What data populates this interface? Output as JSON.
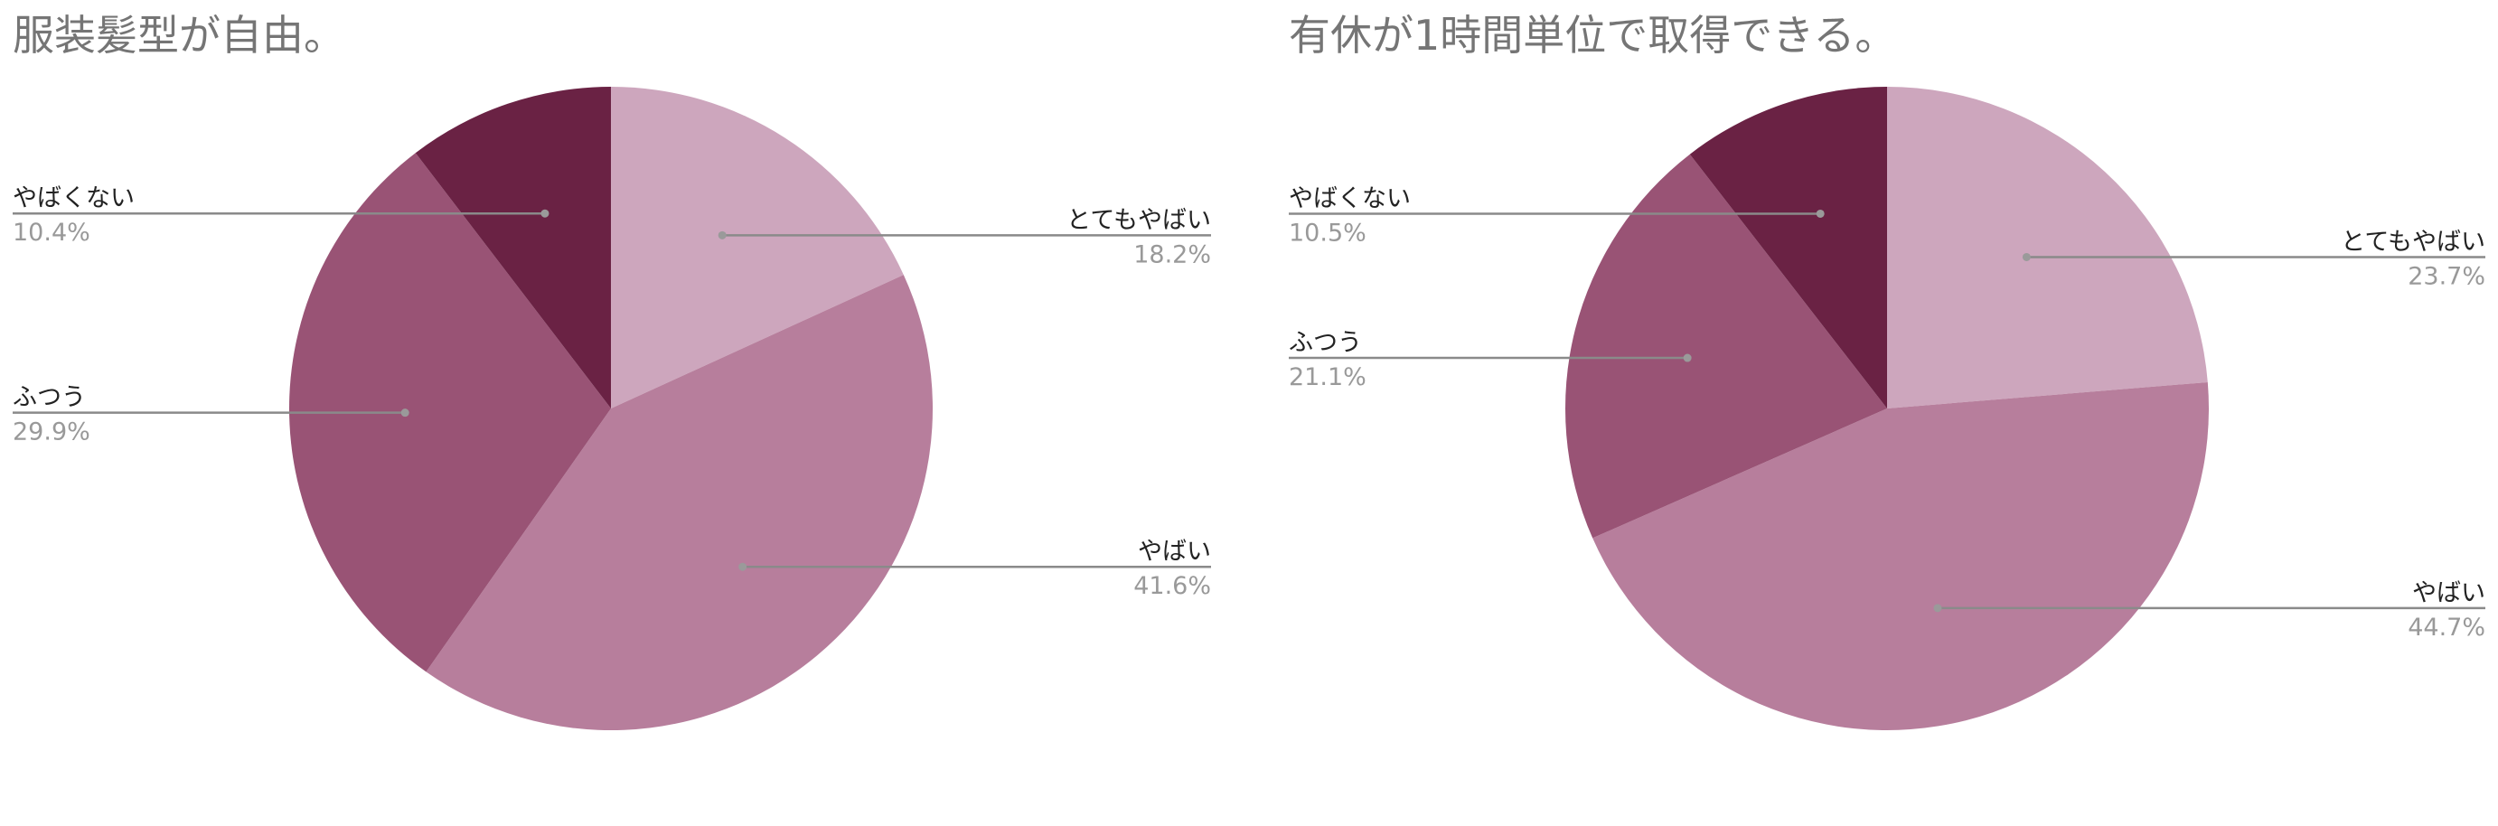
{
  "chart_data": [
    {
      "type": "pie",
      "title": "服装髪型が自由。",
      "start_angle_deg": 0,
      "direction": "clockwise",
      "slices": [
        {
          "label": "とてもやばい",
          "value": 18.2,
          "display": "18.2%",
          "color": "#cda6bd"
        },
        {
          "label": "やばい",
          "value": 41.6,
          "display": "41.6%",
          "color": "#b77e9c"
        },
        {
          "label": "ふつう",
          "value": 29.9,
          "display": "29.9%",
          "color": "#995375"
        },
        {
          "label": "やばくない",
          "value": 10.4,
          "display": "10.4%",
          "color": "#6a2244"
        }
      ]
    },
    {
      "type": "pie",
      "title": "有休が1時間単位で取得できる。",
      "start_angle_deg": 0,
      "direction": "clockwise",
      "slices": [
        {
          "label": "とてもやばい",
          "value": 23.7,
          "display": "23.7%",
          "color": "#cda6bd"
        },
        {
          "label": "やばい",
          "value": 44.7,
          "display": "44.7%",
          "color": "#b77e9c"
        },
        {
          "label": "ふつう",
          "value": 21.1,
          "display": "21.1%",
          "color": "#995375"
        },
        {
          "label": "やばくない",
          "value": 10.5,
          "display": "10.5%",
          "color": "#6a2244"
        }
      ]
    }
  ]
}
